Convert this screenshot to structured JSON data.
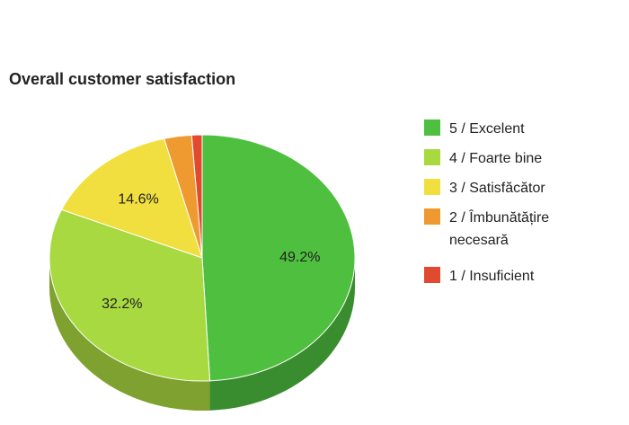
{
  "chart_data": {
    "type": "pie",
    "title": "Overall customer satisfaction",
    "three_d": true,
    "legend_position": "right",
    "slices": [
      {
        "label": "5 / Excelent",
        "value": 49.2,
        "display": "49.2%",
        "color": "#4fbf3f",
        "side_color": "#3a8d2e"
      },
      {
        "label": "4 / Foarte bine",
        "value": 32.2,
        "display": "32.2%",
        "color": "#a8d941",
        "side_color": "#7ea130"
      },
      {
        "label": "3 / Satisfăcător",
        "value": 14.6,
        "display": "14.6%",
        "color": "#f1df3f",
        "side_color": "#b3a52f"
      },
      {
        "label": "2 / Îmbunătățire necesară",
        "label_lines": [
          "2 / Îmbunătățire",
          "necesară"
        ],
        "value": 2.9,
        "display": "",
        "color": "#ef9a30",
        "side_color": "#b27323"
      },
      {
        "label": "1 / Insuficient",
        "value": 1.1,
        "display": "",
        "color": "#e14a2f",
        "side_color": "#a73724"
      }
    ]
  }
}
